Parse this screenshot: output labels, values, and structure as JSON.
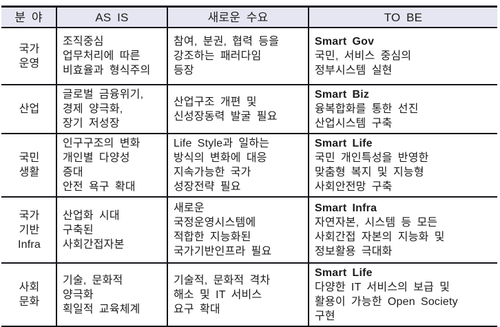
{
  "colors": {
    "header_bg": "#e6e6f2",
    "border": "#14141a",
    "text": "#1c1c1c"
  },
  "table": {
    "headers": {
      "field": "분 야",
      "as_is": "AS IS",
      "new_demand": "새로운 수요",
      "to_be": "TO BE"
    },
    "rows": [
      {
        "field": "국가\n운영",
        "as_is": "조직중심\n업무처리에 따른\n비효율과 형식주의",
        "new_demand": "참여, 분권, 협력 등을\n강조하는 패러다임\n등장",
        "to_be_title": "Smart Gov",
        "to_be_body": "국민, 서비스 중심의\n정부시스템 실현"
      },
      {
        "field": "산업",
        "as_is": "글로벌 금융위기,\n경제 양극화,\n장기 저성장",
        "new_demand": "산업구조 개편 및\n신성장동력 발굴 필요",
        "to_be_title": "Smart Biz",
        "to_be_body": "융복합화를 통한 선진\n산업시스템 구축"
      },
      {
        "field": "국민\n생활",
        "as_is": "인구구조의 변화\n개인별 다양성\n증대\n안전 욕구 확대",
        "new_demand": "Life Style과 일하는\n방식의 변화에 대응\n지속가능한 국가\n성장전략 필요",
        "to_be_title": "Smart Life",
        "to_be_body": "국민 개인특성을 반영한\n맞춤형 복지 및 지능형\n사회안전망 구축"
      },
      {
        "field": "국가\n기반\nInfra",
        "as_is": "산업화 시대\n구축된\n사회간접자본",
        "new_demand": "새로운\n국정운영시스템에\n적합한 지능화된\n국가기반인프라 필요",
        "to_be_title": "Smart Infra",
        "to_be_body": "자연자본, 시스템 등 모든\n사회간접 자본의 지능화 및\n정보활용 극대화"
      },
      {
        "field": "사회\n문화",
        "as_is": "기술, 문화적\n양극화\n획일적 교육체계",
        "new_demand": "기술적, 문화적 격차\n해소 및 IT 서비스\n요구 확대",
        "to_be_title": "Smart Life",
        "to_be_body": "다양한 IT 서비스의 보급 및\n활용이 가능한 Open Society\n구현"
      }
    ]
  }
}
